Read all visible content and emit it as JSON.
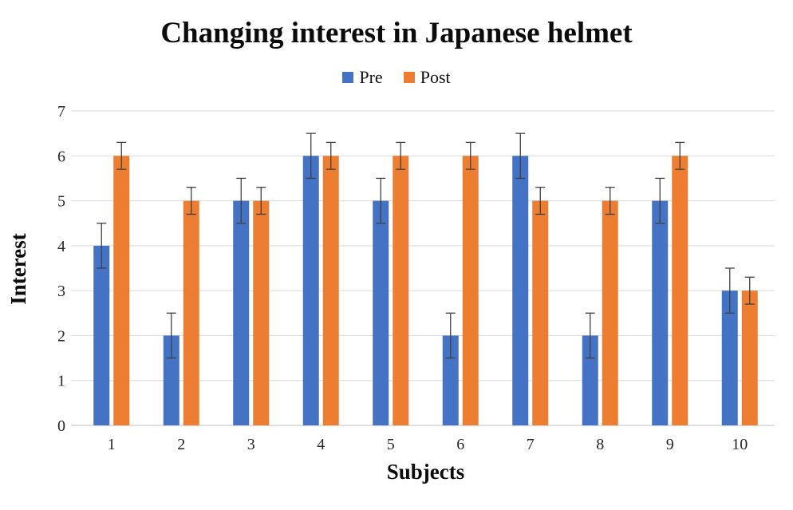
{
  "chart_data": {
    "type": "bar",
    "title": "Changing interest in Japanese helmet",
    "xlabel": "Subjects",
    "ylabel": "Interest",
    "categories": [
      "1",
      "2",
      "3",
      "4",
      "5",
      "6",
      "7",
      "8",
      "9",
      "10"
    ],
    "series": [
      {
        "name": "Pre",
        "color": "#4472C4",
        "values": [
          4,
          2,
          5,
          6,
          5,
          2,
          6,
          2,
          5,
          3
        ],
        "errors": [
          0.5,
          0.5,
          0.5,
          0.5,
          0.5,
          0.5,
          0.5,
          0.5,
          0.5,
          0.5
        ]
      },
      {
        "name": "Post",
        "color": "#ED7D31",
        "values": [
          6,
          5,
          5,
          6,
          6,
          6,
          5,
          5,
          6,
          3
        ],
        "errors": [
          0.3,
          0.3,
          0.3,
          0.3,
          0.3,
          0.3,
          0.3,
          0.3,
          0.3,
          0.3
        ]
      }
    ],
    "ylim": [
      0,
      7
    ],
    "ytick_step": 1,
    "yticks": [
      "0",
      "1",
      "2",
      "3",
      "4",
      "5",
      "6",
      "7"
    ],
    "grid": true,
    "error_bars": true,
    "legend_position": "top-center",
    "colors": {
      "gridline": "#D9D9D9",
      "axis_line": "#BFBFBF",
      "error_bar": "#404040",
      "tick_text": "#262626"
    }
  }
}
